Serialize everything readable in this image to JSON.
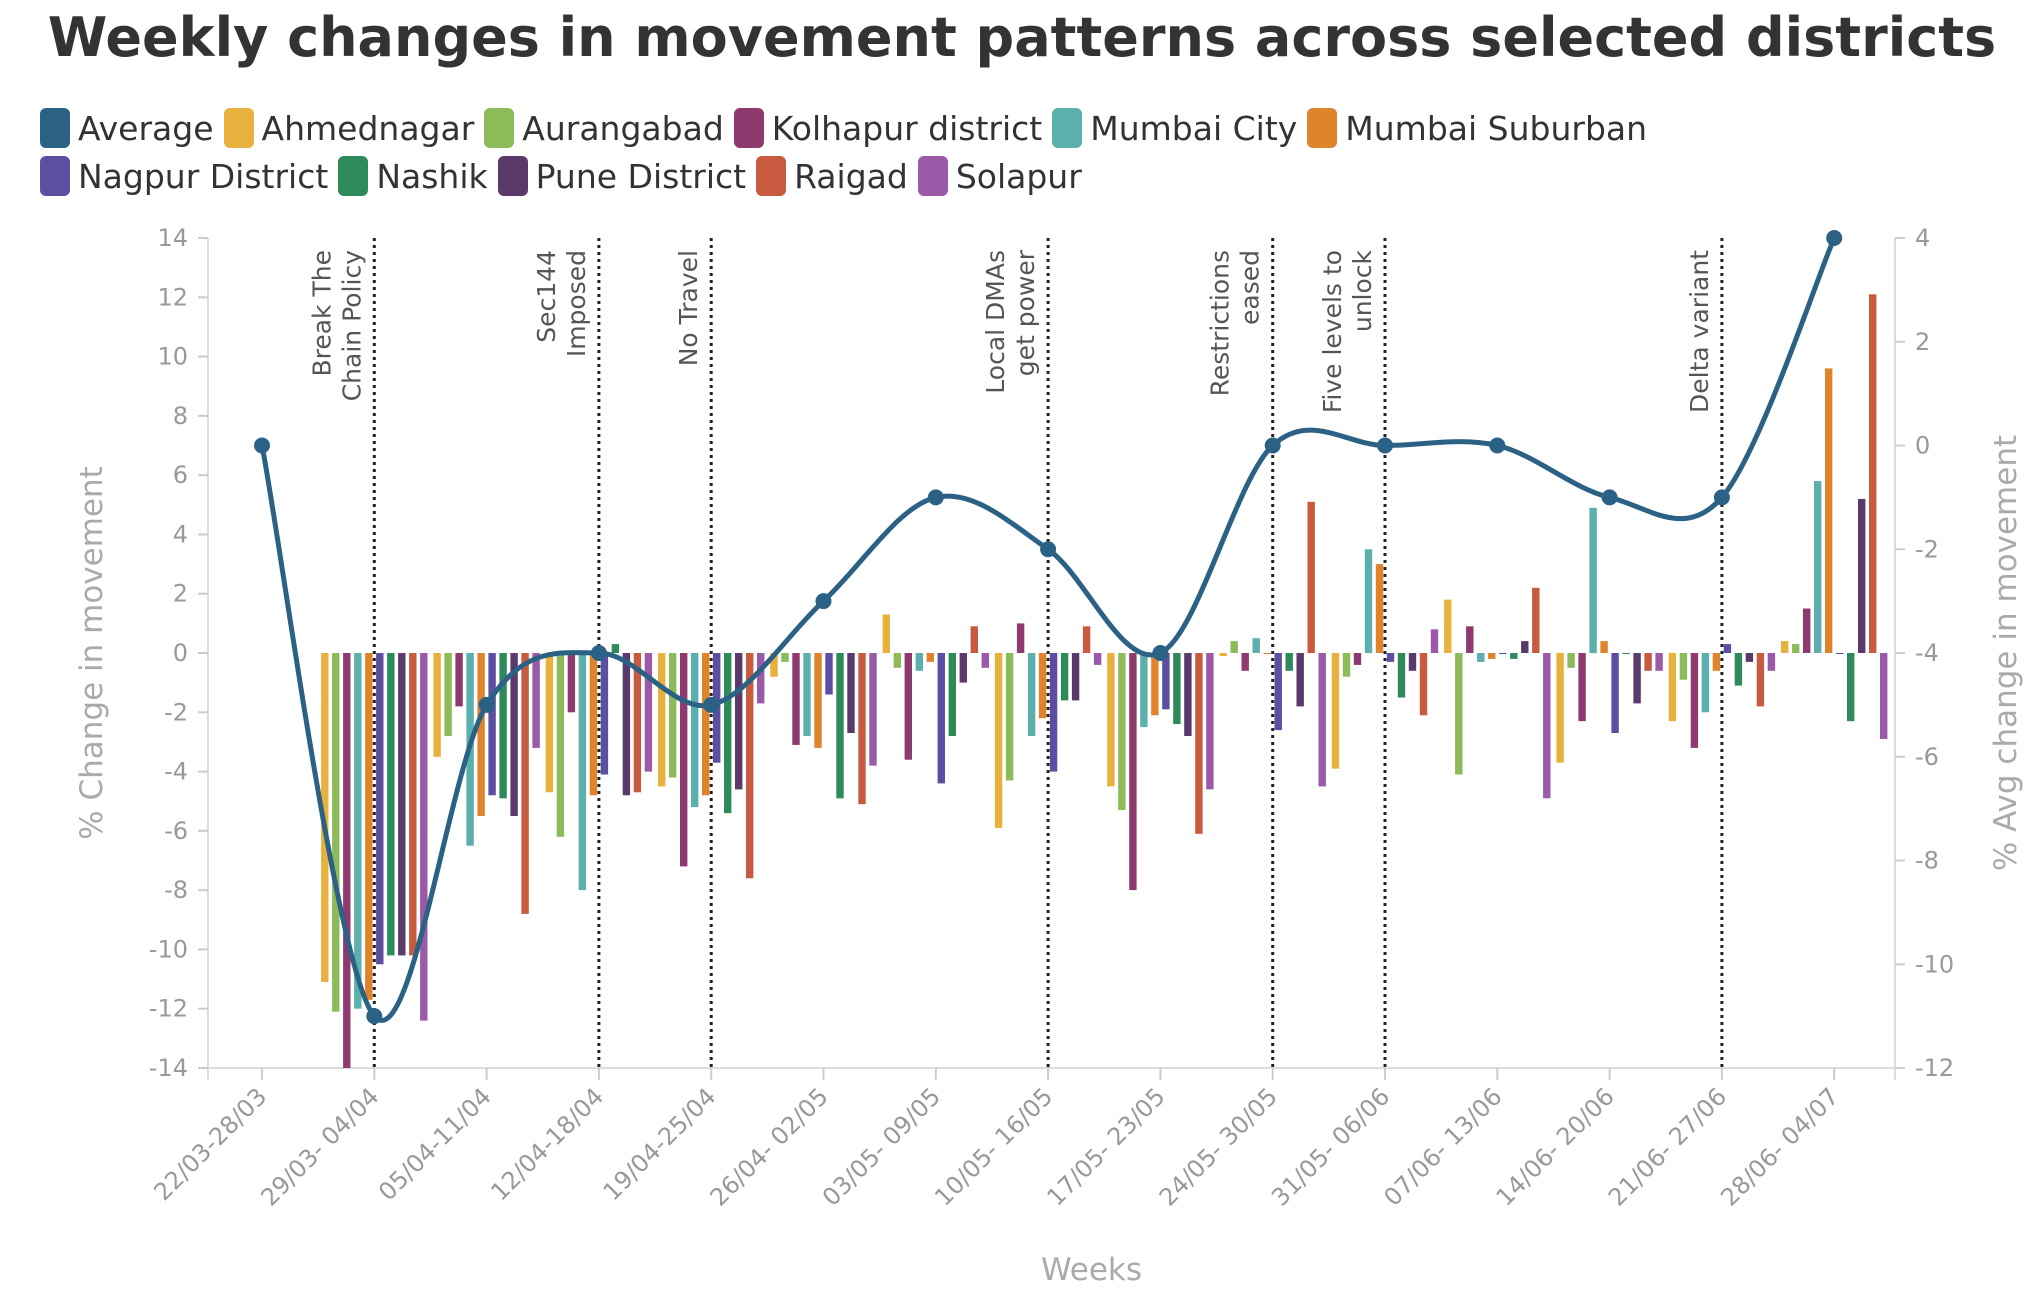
{
  "chart_data": {
    "type": "bar",
    "title": "Weekly changes in movement patterns across selected districts",
    "xlabel": "Weeks",
    "ylabel": "% Change in movement",
    "y2label": "% Avg change in movement",
    "ylim": [
      -14,
      14
    ],
    "y2lim": [
      -12,
      4
    ],
    "yticks": [
      14,
      12,
      10,
      8,
      6,
      4,
      2,
      0,
      -2,
      -4,
      -6,
      -8,
      -10,
      -12,
      -14
    ],
    "y2ticks": [
      4,
      2,
      0,
      -2,
      -4,
      -6,
      -8,
      -10,
      -12
    ],
    "categories": [
      "22/03-28/03",
      "29/03- 04/04",
      "05/04-11/04",
      "12/04-18/04",
      "19/04-25/04",
      "26/04- 02/05",
      "03/05- 09/05",
      "10/05- 16/05",
      "17/05- 23/05",
      "24/05- 30/05",
      "31/05- 06/06",
      "07/06- 13/06",
      "14/06- 20/06",
      "21/06- 27/06",
      "28/06- 04/07"
    ],
    "legend_placement": "top",
    "series": [
      {
        "name": "Ahmednagar",
        "color": "#e8b03c",
        "values": [
          null,
          -11.1,
          -3.5,
          -4.7,
          -4.5,
          -0.8,
          1.3,
          -5.9,
          -4.5,
          -0.1,
          -3.9,
          1.8,
          -3.7,
          -2.3,
          0.4
        ]
      },
      {
        "name": "Aurangabad",
        "color": "#8dbb5a",
        "values": [
          null,
          -12.1,
          -2.8,
          -6.2,
          -4.2,
          -0.3,
          -0.5,
          -4.3,
          -5.3,
          0.4,
          -0.8,
          -4.1,
          -0.5,
          -0.9,
          0.3
        ]
      },
      {
        "name": "Kolhapur district",
        "color": "#8e3a6e",
        "values": [
          null,
          -14.0,
          -1.8,
          -2.0,
          -7.2,
          -3.1,
          -3.6,
          1.0,
          -8.0,
          -0.6,
          -0.4,
          0.9,
          -2.3,
          -3.2,
          1.5
        ]
      },
      {
        "name": "Mumbai City",
        "color": "#5bafad",
        "values": [
          null,
          -12.0,
          -6.5,
          -8.0,
          -5.2,
          -2.8,
          -0.6,
          -2.8,
          -2.5,
          0.5,
          3.5,
          -0.3,
          4.9,
          -2.0,
          5.8
        ]
      },
      {
        "name": "Mumbai Suburban",
        "color": "#e0842c",
        "values": [
          null,
          -11.7,
          -5.5,
          -4.8,
          -4.8,
          -3.2,
          -0.3,
          -2.2,
          -2.1,
          0.0,
          3.0,
          -0.2,
          0.4,
          -0.6,
          9.6
        ]
      },
      {
        "name": "Nagpur District",
        "color": "#5c4ea0",
        "values": [
          null,
          -10.5,
          -4.8,
          -4.1,
          -3.7,
          -1.4,
          -4.4,
          -4.0,
          -1.9,
          -2.6,
          -0.3,
          0.0,
          -2.7,
          0.3,
          0.0
        ]
      },
      {
        "name": "Nashik",
        "color": "#2e8a5a",
        "values": [
          null,
          -10.2,
          -4.9,
          0.3,
          -5.4,
          -4.9,
          -2.8,
          -1.6,
          -2.4,
          -0.6,
          -1.5,
          -0.2,
          0.0,
          -1.1,
          -2.3
        ]
      },
      {
        "name": "Pune District",
        "color": "#5a3a6a",
        "values": [
          null,
          -10.2,
          -5.5,
          -4.8,
          -4.6,
          -2.7,
          -1.0,
          -1.6,
          -2.8,
          -1.8,
          -0.6,
          0.4,
          -1.7,
          -0.3,
          5.2
        ]
      },
      {
        "name": "Raigad",
        "color": "#c85a40",
        "values": [
          null,
          -10.2,
          -8.8,
          -4.7,
          -7.6,
          -5.1,
          0.9,
          0.9,
          -6.1,
          5.1,
          -2.1,
          2.2,
          -0.6,
          -1.8,
          12.1
        ]
      },
      {
        "name": "Solapur",
        "color": "#9b5aa8",
        "values": [
          null,
          -12.4,
          -3.2,
          -4.0,
          -1.7,
          -3.8,
          -0.5,
          -0.4,
          -4.6,
          -4.5,
          0.8,
          -4.9,
          -0.6,
          -0.6,
          -2.9
        ]
      }
    ],
    "line_series": {
      "name": "Average",
      "color": "#2c6186",
      "axis": "right",
      "values": [
        0,
        -11,
        -5,
        -4,
        -5,
        -3,
        -1,
        -2,
        -4,
        0,
        0,
        0,
        -1,
        -1,
        4
      ]
    },
    "annotations": [
      {
        "week_index": 1,
        "lines": [
          "Break The",
          "Chain Policy"
        ]
      },
      {
        "week_index": 3,
        "lines": [
          "Sec144",
          "Imposed"
        ]
      },
      {
        "week_index": 4,
        "lines": [
          "No Travel"
        ]
      },
      {
        "week_index": 7,
        "lines": [
          "Local DMAs",
          "get power"
        ]
      },
      {
        "week_index": 9,
        "lines": [
          "Restrictions",
          "eased"
        ]
      },
      {
        "week_index": 10,
        "lines": [
          "Five levels to",
          "unlock"
        ]
      },
      {
        "week_index": 13,
        "lines": [
          "Delta variant"
        ]
      }
    ]
  }
}
